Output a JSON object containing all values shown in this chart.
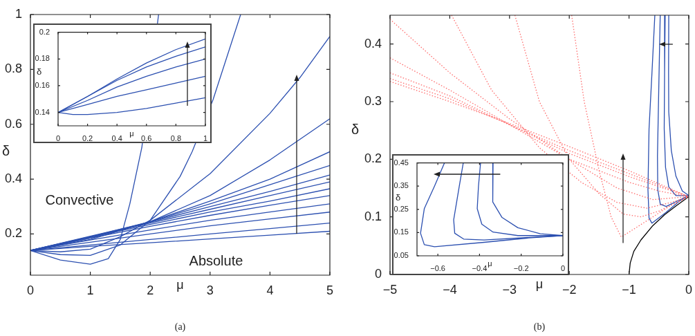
{
  "chart_data": [
    {
      "type": "line",
      "xlim": [
        0,
        5
      ],
      "ylim": [
        0.05,
        1
      ],
      "xticks": [
        0,
        1,
        2,
        3,
        4,
        5
      ],
      "yticks": [
        0.2,
        0.4,
        0.6,
        0.8,
        1
      ],
      "xlabel": "μ",
      "ylabel": "δ",
      "grid": false,
      "legend": false,
      "annotations": [
        "Convective",
        "Absolute",
        "(a)"
      ],
      "series": [
        {
          "color": "#2b4fb0",
          "x": [
            0,
            0.5,
            1,
            1.3,
            1.5,
            1.66,
            1.86,
            2.14
          ],
          "values": [
            0.14,
            0.105,
            0.09,
            0.11,
            0.18,
            0.31,
            0.515,
            1
          ]
        },
        {
          "color": "#2b4fb0",
          "x": [
            0,
            0.5,
            1,
            1.5,
            2,
            2.5,
            2.7,
            3.05,
            3.51
          ],
          "values": [
            0.14,
            0.125,
            0.122,
            0.16,
            0.25,
            0.41,
            0.5,
            0.69,
            1
          ]
        },
        {
          "color": "#2b4fb0",
          "x": [
            0,
            0.5,
            1,
            1.5,
            2,
            3,
            4,
            4.5,
            5
          ],
          "values": [
            0.14,
            0.135,
            0.145,
            0.19,
            0.25,
            0.42,
            0.64,
            0.77,
            0.92
          ]
        },
        {
          "color": "#2b4fb0",
          "x": [
            0,
            1,
            2,
            3,
            4,
            5
          ],
          "values": [
            0.14,
            0.18,
            0.245,
            0.34,
            0.47,
            0.62
          ]
        },
        {
          "color": "#2b4fb0",
          "x": [
            0,
            1,
            2,
            3,
            4,
            5
          ],
          "values": [
            0.14,
            0.185,
            0.245,
            0.32,
            0.4,
            0.5
          ]
        },
        {
          "color": "#2b4fb0",
          "x": [
            0,
            1,
            2,
            3,
            4,
            5
          ],
          "values": [
            0.14,
            0.19,
            0.245,
            0.31,
            0.38,
            0.45
          ]
        },
        {
          "color": "#2b4fb0",
          "x": [
            0,
            1,
            2,
            3,
            4,
            5
          ],
          "values": [
            0.14,
            0.192,
            0.243,
            0.3,
            0.355,
            0.415
          ]
        },
        {
          "color": "#2b4fb0",
          "x": [
            0,
            1,
            2,
            3,
            4,
            5
          ],
          "values": [
            0.14,
            0.19,
            0.24,
            0.29,
            0.34,
            0.39
          ]
        },
        {
          "color": "#2b4fb0",
          "x": [
            0,
            1,
            2,
            3,
            4,
            5
          ],
          "values": [
            0.14,
            0.188,
            0.235,
            0.28,
            0.32,
            0.365
          ]
        },
        {
          "color": "#2b4fb0",
          "x": [
            0,
            1,
            2,
            3,
            4,
            5
          ],
          "values": [
            0.14,
            0.185,
            0.228,
            0.268,
            0.305,
            0.34
          ]
        },
        {
          "color": "#2b4fb0",
          "x": [
            0,
            1,
            2,
            3,
            4,
            5
          ],
          "values": [
            0.14,
            0.178,
            0.215,
            0.25,
            0.28,
            0.31
          ]
        },
        {
          "color": "#2b4fb0",
          "x": [
            0,
            1,
            2,
            3,
            4,
            5
          ],
          "values": [
            0.14,
            0.17,
            0.2,
            0.23,
            0.255,
            0.28
          ]
        },
        {
          "color": "#2b4fb0",
          "x": [
            0,
            1,
            2,
            3,
            4,
            5
          ],
          "values": [
            0.14,
            0.16,
            0.18,
            0.2,
            0.22,
            0.24
          ]
        },
        {
          "color": "#2b4fb0",
          "x": [
            0,
            1,
            2,
            3,
            4,
            5
          ],
          "values": [
            0.14,
            0.155,
            0.168,
            0.182,
            0.196,
            0.21
          ]
        }
      ]
    },
    {
      "type": "line",
      "xlim": [
        0,
        1
      ],
      "ylim": [
        0.13,
        0.2
      ],
      "xticks": [
        0,
        0.2,
        0.4,
        0.6,
        0.8,
        1
      ],
      "yticks": [
        0.14,
        0.16,
        0.18,
        0.2
      ],
      "xlabel": "μ",
      "ylabel": "δ",
      "grid": false,
      "legend": false,
      "series": [
        {
          "color": "#2b4fb0",
          "x": [
            0,
            0.2,
            0.4,
            0.6,
            0.8,
            1
          ],
          "values": [
            0.14,
            0.152,
            0.165,
            0.177,
            0.187,
            0.195
          ]
        },
        {
          "color": "#2b4fb0",
          "x": [
            0,
            0.2,
            0.4,
            0.6,
            0.8,
            1
          ],
          "values": [
            0.14,
            0.152,
            0.164,
            0.174,
            0.182,
            0.189
          ]
        },
        {
          "color": "#2b4fb0",
          "x": [
            0,
            0.2,
            0.4,
            0.6,
            0.8,
            1
          ],
          "values": [
            0.14,
            0.149,
            0.159,
            0.167,
            0.174,
            0.18
          ]
        },
        {
          "color": "#2b4fb0",
          "x": [
            0,
            0.2,
            0.4,
            0.6,
            0.8,
            1
          ],
          "values": [
            0.14,
            0.146,
            0.152,
            0.157,
            0.162,
            0.167
          ]
        },
        {
          "color": "#2b4fb0",
          "x": [
            0,
            0.1,
            0.2,
            0.4,
            0.6,
            0.8,
            1
          ],
          "values": [
            0.14,
            0.1385,
            0.1385,
            0.14,
            0.143,
            0.147,
            0.151
          ]
        }
      ]
    },
    {
      "type": "line",
      "xlim": [
        -5,
        0
      ],
      "ylim": [
        0,
        0.45
      ],
      "xticks": [
        {
          "value": -5,
          "label": "−5"
        },
        {
          "value": -4,
          "label": "−4"
        },
        {
          "value": -3,
          "label": "−3"
        },
        {
          "value": -2,
          "label": "−2"
        },
        {
          "value": -1,
          "label": "−1"
        },
        0
      ],
      "yticks": [
        0,
        0.1,
        0.2,
        0.3,
        0.4
      ],
      "xlabel": "μ",
      "ylabel": "δ",
      "grid": false,
      "legend": false,
      "annotations": [
        "(b)"
      ],
      "series": [
        {
          "color": "#ff6b6b",
          "line_style": "dotted",
          "x": [
            -1.96,
            -1.75,
            -1.5,
            -1.3,
            -1.13,
            -0.9,
            -0.6,
            -0.3,
            0
          ],
          "values": [
            0.45,
            0.3,
            0.18,
            0.1,
            0.065,
            0.08,
            0.1,
            0.12,
            0.135
          ]
        },
        {
          "color": "#ff6b6b",
          "line_style": "dotted",
          "x": [
            -2.91,
            -2.5,
            -2,
            -1.5,
            -1.1,
            -0.8,
            -0.5,
            -0.2,
            0
          ],
          "values": [
            0.45,
            0.3,
            0.2,
            0.14,
            0.105,
            0.1,
            0.11,
            0.125,
            0.135
          ]
        },
        {
          "color": "#ff6b6b",
          "line_style": "dotted",
          "x": [
            -3.97,
            -3.3,
            -2.5,
            -1.8,
            -1.2,
            -0.7,
            -0.3,
            0
          ],
          "values": [
            0.45,
            0.32,
            0.22,
            0.16,
            0.125,
            0.115,
            0.125,
            0.135
          ]
        },
        {
          "color": "#ff6b6b",
          "line_style": "dotted",
          "x": [
            -5,
            -4,
            -3,
            -2,
            -1.2,
            -0.6,
            0
          ],
          "values": [
            0.443,
            0.35,
            0.27,
            0.2,
            0.15,
            0.13,
            0.135
          ]
        },
        {
          "color": "#ff6b6b",
          "line_style": "dotted",
          "x": [
            -5,
            -4,
            -3,
            -2,
            -1,
            -0.5,
            0
          ],
          "values": [
            0.376,
            0.32,
            0.26,
            0.2,
            0.16,
            0.145,
            0.135
          ]
        },
        {
          "color": "#ff6b6b",
          "line_style": "dotted",
          "x": [
            -5,
            -4,
            -3,
            -2,
            -1,
            0
          ],
          "values": [
            0.35,
            0.31,
            0.26,
            0.21,
            0.17,
            0.135
          ]
        },
        {
          "color": "#ff6b6b",
          "line_style": "dotted",
          "x": [
            -5,
            -4,
            -3,
            -2,
            -1,
            0
          ],
          "values": [
            0.34,
            0.305,
            0.26,
            0.215,
            0.175,
            0.135
          ]
        },
        {
          "color": "#ff6b6b",
          "line_style": "dotted",
          "x": [
            -5,
            -4,
            -3,
            -2,
            -1,
            0
          ],
          "values": [
            0.335,
            0.3,
            0.262,
            0.222,
            0.18,
            0.135
          ]
        },
        {
          "color": "#000000",
          "x": [
            -1,
            -0.98,
            -0.92,
            -0.8,
            -0.6,
            -0.4,
            -0.2,
            0
          ],
          "values": [
            0,
            0.02,
            0.04,
            0.06,
            0.085,
            0.104,
            0.12,
            0.135
          ]
        },
        {
          "color": "#2b4fb0",
          "x": [
            -0.568,
            -0.616,
            -0.665,
            -0.683,
            -0.665,
            -0.616,
            -0.378,
            -0.162,
            0
          ],
          "values": [
            0.45,
            0.35,
            0.253,
            0.147,
            0.098,
            0.089,
            0.108,
            0.127,
            0.137
          ]
        },
        {
          "color": "#2b4fb0",
          "x": [
            -0.478,
            -0.497,
            -0.524,
            -0.519,
            -0.476,
            -0.378,
            -0.162,
            0
          ],
          "values": [
            0.45,
            0.35,
            0.205,
            0.147,
            0.122,
            0.118,
            0.129,
            0.137
          ]
        },
        {
          "color": "#2b4fb0",
          "x": [
            -0.395,
            -0.405,
            -0.411,
            -0.389,
            -0.335,
            -0.216,
            0
          ],
          "values": [
            0.45,
            0.35,
            0.253,
            0.186,
            0.152,
            0.137,
            0.137
          ]
        },
        {
          "color": "#2b4fb0",
          "x": [
            -0.335,
            -0.338,
            -0.335,
            -0.292,
            -0.216,
            -0.108,
            0
          ],
          "values": [
            0.45,
            0.35,
            0.282,
            0.215,
            0.171,
            0.145,
            0.137
          ]
        }
      ]
    },
    {
      "type": "line",
      "xlim": [
        -0.7,
        0
      ],
      "ylim": [
        0.05,
        0.45
      ],
      "xticks": [
        {
          "value": -0.6,
          "label": "−0.6"
        },
        {
          "value": -0.4,
          "label": "−0.4"
        },
        {
          "value": -0.2,
          "label": "−0.2"
        },
        0
      ],
      "yticks": [
        0.05,
        0.15,
        0.25,
        0.35,
        0.45
      ],
      "xlabel": "μ",
      "ylabel": "δ",
      "grid": false,
      "legend": false,
      "series": [
        {
          "color": "#2b4fb0",
          "x": [
            -0.568,
            -0.616,
            -0.665,
            -0.683,
            -0.665,
            -0.616,
            -0.378,
            -0.162,
            0
          ],
          "values": [
            0.45,
            0.35,
            0.253,
            0.147,
            0.098,
            0.089,
            0.108,
            0.127,
            0.137
          ]
        },
        {
          "color": "#2b4fb0",
          "x": [
            -0.478,
            -0.497,
            -0.524,
            -0.519,
            -0.476,
            -0.378,
            -0.162,
            0
          ],
          "values": [
            0.45,
            0.35,
            0.205,
            0.147,
            0.122,
            0.118,
            0.129,
            0.137
          ]
        },
        {
          "color": "#2b4fb0",
          "x": [
            -0.395,
            -0.405,
            -0.411,
            -0.389,
            -0.335,
            -0.216,
            0
          ],
          "values": [
            0.45,
            0.35,
            0.253,
            0.186,
            0.152,
            0.137,
            0.137
          ]
        },
        {
          "color": "#2b4fb0",
          "x": [
            -0.335,
            -0.338,
            -0.335,
            -0.292,
            -0.216,
            -0.108,
            0
          ],
          "values": [
            0.45,
            0.35,
            0.282,
            0.215,
            0.171,
            0.145,
            0.137
          ]
        }
      ]
    }
  ]
}
